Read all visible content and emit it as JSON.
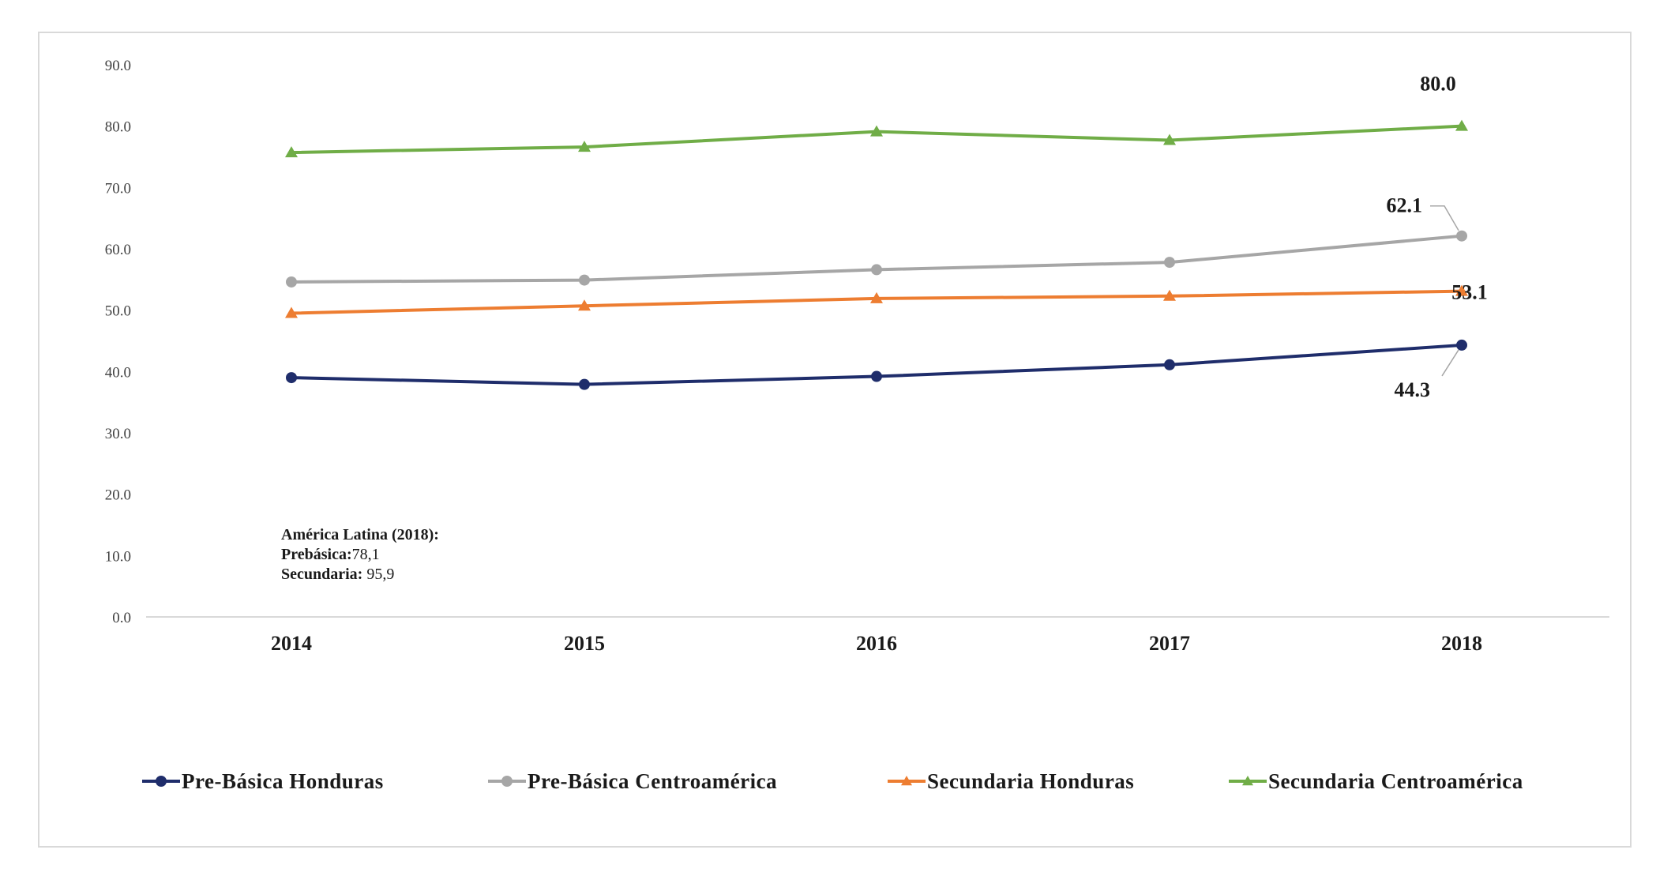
{
  "chart_data": {
    "type": "line",
    "categories": [
      "2014",
      "2015",
      "2016",
      "2017",
      "2018"
    ],
    "ylim": [
      0,
      90
    ],
    "yticks": [
      "0.0",
      "10.0",
      "20.0",
      "30.0",
      "40.0",
      "50.0",
      "60.0",
      "70.0",
      "80.0",
      "90.0"
    ],
    "grid": false,
    "legend_position": "bottom",
    "series": [
      {
        "name": "Pre-Básica Honduras",
        "color": "#1f2d6b",
        "marker": "circle",
        "values": [
          39.0,
          37.9,
          39.2,
          41.1,
          44.3
        ],
        "end_label": "44.3"
      },
      {
        "name": "Pre-Básica Centroamérica",
        "color": "#a6a6a6",
        "marker": "circle",
        "values": [
          54.6,
          54.9,
          56.6,
          57.8,
          62.1
        ],
        "end_label": "62.1"
      },
      {
        "name": "Secundaria Honduras",
        "color": "#ed7d31",
        "marker": "triangle",
        "values": [
          49.5,
          50.7,
          51.9,
          52.3,
          53.1
        ],
        "end_label": "53.1"
      },
      {
        "name": "Secundaria Centroamérica",
        "color": "#70ad47",
        "marker": "triangle",
        "values": [
          75.7,
          76.6,
          79.1,
          77.7,
          80.0
        ],
        "end_label": "80.0"
      }
    ],
    "annotation": {
      "title": "América Latina (2018):",
      "line1_label": "Prebásica:",
      "line1_value": "78,1",
      "line2_label": "Secundaria:",
      "line2_value": " 95,9"
    }
  }
}
